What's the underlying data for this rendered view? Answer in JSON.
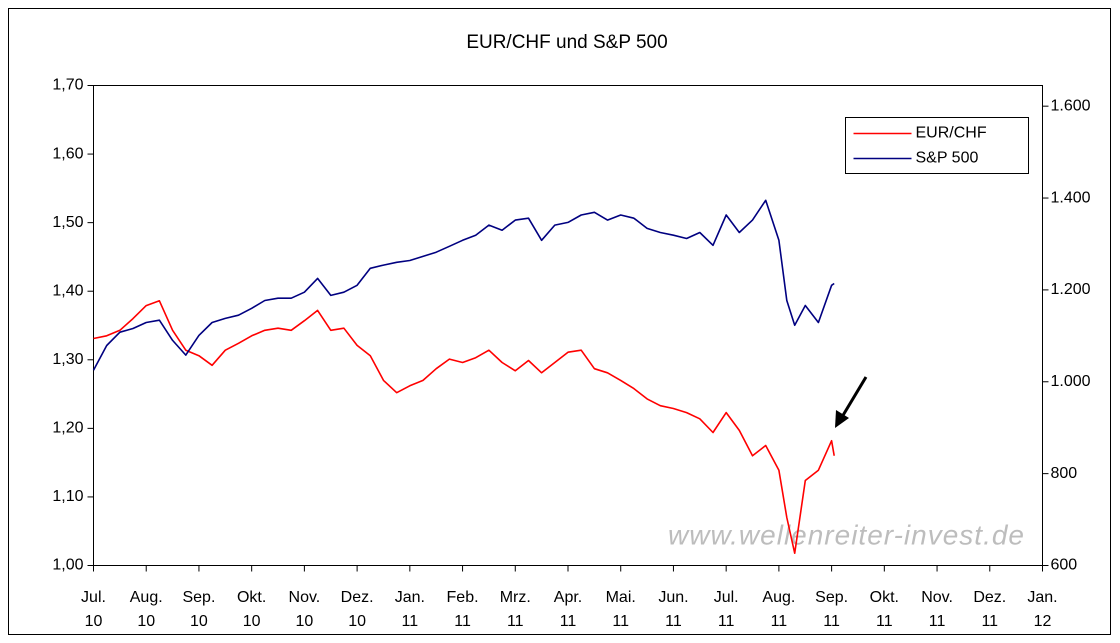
{
  "chart_data": {
    "type": "line",
    "title": "EUR/CHF und S&P 500",
    "annotations": [
      "www.wellenreiter-invest.de"
    ],
    "xlim": [
      0,
      18
    ],
    "xticks": [
      {
        "value": 0,
        "label": "Jul.\n10"
      },
      {
        "value": 1,
        "label": "Aug.\n10"
      },
      {
        "value": 2,
        "label": "Sep.\n10"
      },
      {
        "value": 3,
        "label": "Okt.\n10"
      },
      {
        "value": 4,
        "label": "Nov.\n10"
      },
      {
        "value": 5,
        "label": "Dez.\n10"
      },
      {
        "value": 6,
        "label": "Jan.\n11"
      },
      {
        "value": 7,
        "label": "Feb.\n11"
      },
      {
        "value": 8,
        "label": "Mrz.\n11"
      },
      {
        "value": 9,
        "label": "Apr.\n11"
      },
      {
        "value": 10,
        "label": "Mai.\n11"
      },
      {
        "value": 11,
        "label": "Jun.\n11"
      },
      {
        "value": 12,
        "label": "Jul.\n11"
      },
      {
        "value": 13,
        "label": "Aug.\n11"
      },
      {
        "value": 14,
        "label": "Sep.\n11"
      },
      {
        "value": 15,
        "label": "Okt.\n11"
      },
      {
        "value": 16,
        "label": "Nov.\n11"
      },
      {
        "value": 17,
        "label": "Dez.\n11"
      },
      {
        "value": 18,
        "label": "Jan.\n12"
      }
    ],
    "ylim": [
      1.0,
      1.7
    ],
    "yticks": [
      {
        "value": 1.0,
        "label": "1,00"
      },
      {
        "value": 1.1,
        "label": "1,10"
      },
      {
        "value": 1.2,
        "label": "1,20"
      },
      {
        "value": 1.3,
        "label": "1,30"
      },
      {
        "value": 1.4,
        "label": "1,40"
      },
      {
        "value": 1.5,
        "label": "1,50"
      },
      {
        "value": 1.6,
        "label": "1,60"
      },
      {
        "value": 1.7,
        "label": "1,70"
      }
    ],
    "y2lim": [
      600,
      1645
    ],
    "y2ticks": [
      600,
      800,
      {
        "value": 1000,
        "label": "1.000"
      },
      {
        "value": 1200,
        "label": "1.200"
      },
      {
        "value": 1400,
        "label": "1.400"
      },
      {
        "value": 1600,
        "label": "1.600"
      }
    ],
    "legend": "top-right",
    "x": [
      0,
      0.25,
      0.5,
      0.75,
      1,
      1.25,
      1.5,
      1.75,
      2,
      2.25,
      2.5,
      2.75,
      3,
      3.25,
      3.5,
      3.75,
      4,
      4.25,
      4.5,
      4.75,
      5,
      5.25,
      5.5,
      5.75,
      6,
      6.25,
      6.5,
      6.75,
      7,
      7.25,
      7.5,
      7.75,
      8,
      8.25,
      8.5,
      8.75,
      9,
      9.25,
      9.5,
      9.75,
      10,
      10.25,
      10.5,
      10.75,
      11,
      11.25,
      11.5,
      11.75,
      12,
      12.25,
      12.5,
      12.75,
      13,
      13.15,
      13.3,
      13.5,
      13.75,
      14,
      14.05
    ],
    "series": [
      {
        "name": "EUR/CHF",
        "color": "#ff0000",
        "values": [
          1.331,
          1.335,
          1.343,
          1.36,
          1.379,
          1.386,
          1.343,
          1.314,
          1.306,
          1.292,
          1.314,
          1.324,
          1.335,
          1.343,
          1.346,
          1.343,
          1.357,
          1.372,
          1.343,
          1.346,
          1.321,
          1.306,
          1.27,
          1.252,
          1.262,
          1.27,
          1.287,
          1.301,
          1.296,
          1.303,
          1.314,
          1.296,
          1.284,
          1.299,
          1.281,
          1.296,
          1.311,
          1.314,
          1.287,
          1.281,
          1.27,
          1.258,
          1.243,
          1.233,
          1.229,
          1.223,
          1.214,
          1.194,
          1.223,
          1.197,
          1.16,
          1.175,
          1.139,
          1.07,
          1.018,
          1.124,
          1.139,
          1.182,
          1.16
        ]
      },
      {
        "name": "S&P 500",
        "color": "#000080",
        "axis": "y2",
        "values": [
          1025,
          1079,
          1108,
          1116,
          1129,
          1134,
          1090,
          1058,
          1101,
          1129,
          1138,
          1145,
          1160,
          1177,
          1182,
          1182,
          1195,
          1225,
          1188,
          1195,
          1210,
          1247,
          1254,
          1260,
          1264,
          1273,
          1282,
          1295,
          1308,
          1319,
          1341,
          1330,
          1352,
          1356,
          1308,
          1341,
          1347,
          1363,
          1369,
          1352,
          1363,
          1356,
          1334,
          1325,
          1319,
          1312,
          1325,
          1297,
          1363,
          1325,
          1352,
          1395,
          1308,
          1177,
          1123,
          1166,
          1129,
          1210,
          1214
        ]
      }
    ]
  }
}
